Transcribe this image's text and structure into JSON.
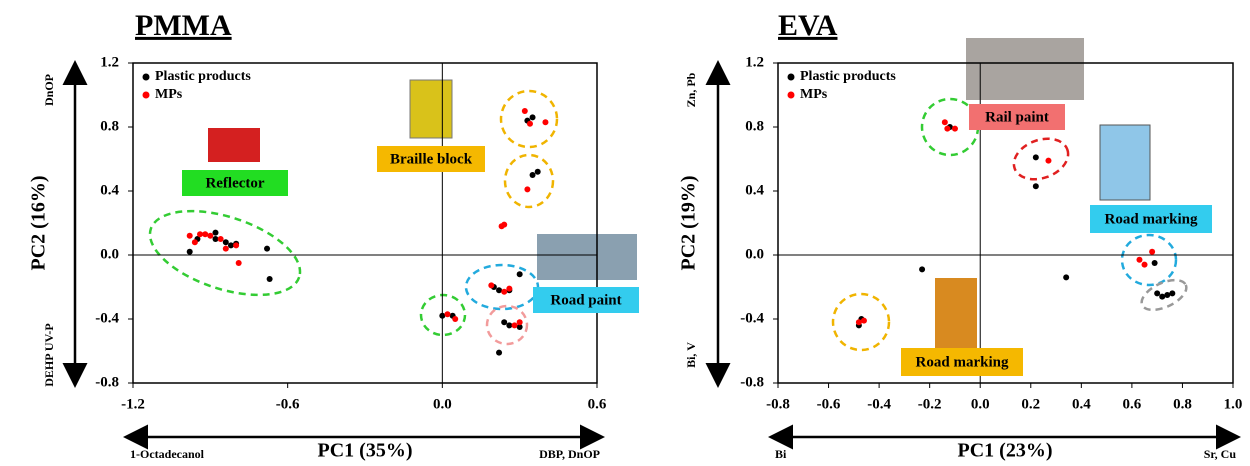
{
  "chart_data": [
    {
      "type": "scatter",
      "title": "PMMA",
      "x_label": "PC1 (35%)",
      "y_label": "PC2 (16%)",
      "x_notes": [
        "1-Octadecanol",
        "DBP, DnOP"
      ],
      "y_notes": [
        "DnOP",
        "DEHP UV-P"
      ],
      "annotations": [
        "Reflector",
        "Braille block",
        "Road paint"
      ],
      "xlim": [
        -1.2,
        0.6
      ],
      "ylim": [
        -0.8,
        1.2
      ],
      "xticks": [
        -1.2,
        -0.6,
        {
          "value": 0,
          "label": "0.0"
        },
        0.6
      ],
      "yticks": [
        -0.8,
        -0.4,
        {
          "value": 0,
          "label": "0.0"
        },
        0.4,
        0.8,
        1.2
      ],
      "series": [
        {
          "name": "Plastic products",
          "color": "#000000",
          "x": [
            -0.98,
            -0.95,
            -0.88,
            -0.88,
            -0.84,
            -0.82,
            -0.8,
            -0.68,
            -0.67,
            0.0,
            0.04,
            0.2,
            0.22,
            0.26,
            0.3,
            0.24,
            0.26,
            0.3,
            0.22,
            0.33,
            0.35,
            0.37,
            0.35
          ],
          "values": [
            0.02,
            0.1,
            0.14,
            0.1,
            0.08,
            0.06,
            0.07,
            0.04,
            -0.15,
            -0.38,
            -0.38,
            -0.2,
            -0.22,
            -0.22,
            -0.12,
            -0.42,
            -0.44,
            -0.45,
            -0.61,
            0.84,
            0.86,
            0.52,
            0.5
          ]
        },
        {
          "name": "MPs",
          "color": "#ff0000",
          "x": [
            -0.98,
            -0.96,
            -0.94,
            -0.92,
            -0.9,
            -0.86,
            -0.84,
            -0.8,
            -0.79,
            0.02,
            0.05,
            0.19,
            0.24,
            0.26,
            0.28,
            0.3,
            0.32,
            0.34,
            0.4,
            0.33,
            0.24,
            0.23
          ],
          "values": [
            0.12,
            0.08,
            0.13,
            0.13,
            0.12,
            0.1,
            0.04,
            0.06,
            -0.05,
            -0.37,
            -0.4,
            -0.19,
            -0.23,
            -0.21,
            -0.44,
            -0.42,
            0.9,
            0.82,
            0.83,
            0.41,
            0.19,
            0.18
          ]
        }
      ]
    },
    {
      "type": "scatter",
      "title": "EVA",
      "x_label": "PC1 (23%)",
      "y_label": "PC2 (19%)",
      "x_notes": [
        "Bi",
        "Sr, Cu"
      ],
      "y_notes": [
        "Zn, Pb",
        "Bi, V"
      ],
      "annotations": [
        "Rail paint",
        "Road marking",
        "Road marking"
      ],
      "xlim": [
        -0.8,
        1.0
      ],
      "ylim": [
        -0.8,
        1.2
      ],
      "xticks": [
        -0.8,
        -0.6,
        -0.4,
        -0.2,
        {
          "value": 0,
          "label": "0.0"
        },
        0.2,
        0.4,
        0.6,
        0.8,
        {
          "value": 1,
          "label": "1.0"
        }
      ],
      "yticks": [
        -0.8,
        -0.4,
        {
          "value": 0,
          "label": "0.0"
        },
        0.4,
        0.8,
        1.2
      ],
      "series": [
        {
          "name": "Plastic products",
          "color": "#000000",
          "x": [
            -0.47,
            -0.48,
            -0.23,
            -0.12,
            0.22,
            0.22,
            0.34,
            0.69,
            0.7,
            0.72,
            0.74,
            0.76
          ],
          "values": [
            -0.4,
            -0.44,
            -0.09,
            0.8,
            0.61,
            0.43,
            -0.14,
            -0.05,
            -0.24,
            -0.26,
            -0.25,
            -0.24
          ]
        },
        {
          "name": "MPs",
          "color": "#ff0000",
          "x": [
            -0.48,
            -0.46,
            -0.14,
            -0.13,
            -0.1,
            0.27,
            0.63,
            0.65,
            0.68
          ],
          "values": [
            -0.42,
            -0.41,
            0.83,
            0.79,
            0.79,
            0.59,
            -0.03,
            -0.06,
            0.02
          ]
        }
      ]
    }
  ]
}
